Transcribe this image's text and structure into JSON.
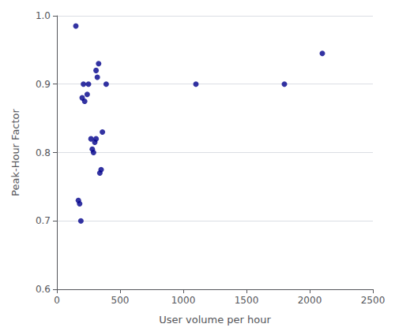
{
  "chart_data": {
    "type": "scatter",
    "x": [
      150,
      200,
      210,
      220,
      240,
      250,
      270,
      280,
      290,
      300,
      310,
      320,
      330,
      340,
      350,
      360,
      390,
      170,
      180,
      190,
      310,
      1100,
      1800,
      2100
    ],
    "y": [
      0.985,
      0.88,
      0.9,
      0.875,
      0.885,
      0.9,
      0.82,
      0.805,
      0.8,
      0.815,
      0.92,
      0.91,
      0.93,
      0.77,
      0.775,
      0.83,
      0.9,
      0.73,
      0.725,
      0.7,
      0.82,
      0.9,
      0.9,
      0.945
    ],
    "color": "#00008B",
    "xlabel": "User volume per hour",
    "ylabel": "Peak-Hour Factor",
    "xlim": [
      0,
      2500
    ],
    "ylim": [
      0.6,
      1.0
    ],
    "xticks": [
      0,
      500,
      1000,
      1500,
      2000,
      2500
    ],
    "yticks": [
      0.6,
      0.7,
      0.8,
      0.9,
      {
        "value": 1.0,
        "label": "1.0"
      }
    ],
    "grid": "y"
  }
}
